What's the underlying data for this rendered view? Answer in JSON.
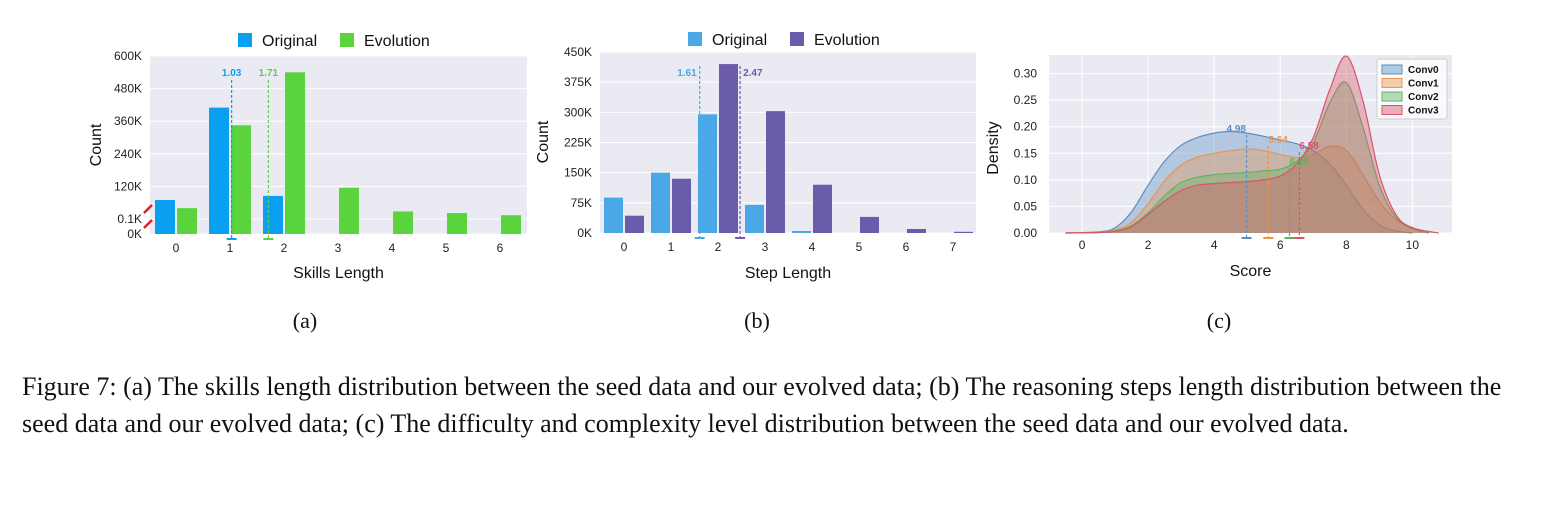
{
  "caption": "Figure 7: (a) The skills length distribution between the seed data and our evolved data; (b) The reasoning steps length distribution between the seed data and our evolved data; (c) The difficulty and complexity level distribution between the seed data and our evolved data.",
  "colors": {
    "original_a": "#0a9ff0",
    "evolution_a": "#5ad43c",
    "original_b": "#4aa8e6",
    "evolution_b": "#6b5bab",
    "plot_bg": "#eaeaf2",
    "break_mark": "#e02020",
    "conv0": "#5b8fc3",
    "conv1": "#ea9550",
    "conv2": "#5fb35f",
    "conv3": "#d9546a"
  },
  "chart_data": [
    {
      "id": "a",
      "type": "bar",
      "panel_label": "(a)",
      "xlabel": "Skills Length",
      "ylabel": "Count",
      "categories": [
        "0",
        "1",
        "2",
        "3",
        "4",
        "5",
        "6"
      ],
      "series": [
        {
          "name": "Original",
          "values": [
            70000,
            410000,
            85000,
            0,
            0,
            0,
            0
          ]
        },
        {
          "name": "Evolution",
          "values": [
            40000,
            345000,
            540000,
            115000,
            28000,
            22000,
            14000
          ]
        }
      ],
      "y_ticks": [
        "0K",
        "0.1K",
        "120K",
        "240K",
        "360K",
        "480K",
        "600K"
      ],
      "y_tick_values": [
        0,
        100,
        120000,
        240000,
        360000,
        480000,
        600000
      ],
      "ylim": [
        0,
        600000
      ],
      "broken_axis": true,
      "mean_lines": [
        {
          "series": "Original",
          "value": 1.03,
          "label": "1.03"
        },
        {
          "series": "Evolution",
          "value": 1.71,
          "label": "1.71"
        }
      ],
      "legend": "top-center",
      "grid": true
    },
    {
      "id": "b",
      "type": "bar",
      "panel_label": "(b)",
      "xlabel": "Step Length",
      "ylabel": "Count",
      "categories": [
        "0",
        "1",
        "2",
        "3",
        "4",
        "5",
        "6",
        "7"
      ],
      "series": [
        {
          "name": "Original",
          "values": [
            88000,
            150000,
            295000,
            70000,
            5000,
            0,
            0,
            0
          ]
        },
        {
          "name": "Evolution",
          "values": [
            43000,
            135000,
            420000,
            303000,
            120000,
            40000,
            10000,
            3000
          ]
        }
      ],
      "y_ticks": [
        "0K",
        "75K",
        "150K",
        "225K",
        "300K",
        "375K",
        "450K"
      ],
      "y_tick_values": [
        0,
        75000,
        150000,
        225000,
        300000,
        375000,
        450000
      ],
      "ylim": [
        0,
        450000
      ],
      "mean_lines": [
        {
          "series": "Original",
          "value": 1.61,
          "label": "1.61"
        },
        {
          "series": "Evolution",
          "value": 2.47,
          "label": "2.47"
        }
      ],
      "legend": "top-center",
      "grid": true
    },
    {
      "id": "c",
      "type": "area",
      "panel_label": "(c)",
      "xlabel": "Score",
      "ylabel": "Density",
      "x_ticks": [
        0,
        2,
        4,
        6,
        8,
        10
      ],
      "y_ticks": [
        "0.00",
        "0.05",
        "0.10",
        "0.15",
        "0.20",
        "0.25",
        "0.30"
      ],
      "xlim": [
        -1,
        11.2
      ],
      "ylim": [
        0,
        0.335
      ],
      "legend": "top-right",
      "grid": true,
      "series": [
        {
          "name": "Conv0",
          "mean": 4.98,
          "label": "4.98",
          "x": [
            -0.5,
            0.5,
            1.0,
            1.5,
            2.0,
            2.5,
            3.0,
            3.5,
            4.0,
            4.5,
            5.0,
            5.5,
            6.0,
            6.5,
            7.0,
            7.5,
            8.0,
            8.5,
            9.0,
            9.5,
            10.0
          ],
          "y": [
            0.0,
            0.002,
            0.01,
            0.04,
            0.09,
            0.135,
            0.165,
            0.18,
            0.188,
            0.191,
            0.188,
            0.182,
            0.175,
            0.168,
            0.155,
            0.13,
            0.09,
            0.045,
            0.015,
            0.004,
            0.0
          ]
        },
        {
          "name": "Conv1",
          "mean": 5.64,
          "label": "5.64",
          "x": [
            -0.5,
            0.5,
            1.0,
            1.5,
            2.0,
            2.5,
            3.0,
            3.5,
            4.0,
            4.5,
            5.0,
            5.5,
            6.0,
            6.5,
            7.0,
            7.5,
            8.0,
            8.5,
            9.0,
            9.5,
            10.0,
            10.5
          ],
          "y": [
            0.0,
            0.001,
            0.006,
            0.02,
            0.055,
            0.098,
            0.128,
            0.143,
            0.15,
            0.155,
            0.158,
            0.155,
            0.148,
            0.142,
            0.148,
            0.163,
            0.155,
            0.11,
            0.06,
            0.025,
            0.008,
            0.0
          ]
        },
        {
          "name": "Conv2",
          "mean": 6.28,
          "label": "6.28",
          "x": [
            -0.5,
            0.5,
            1.0,
            1.5,
            2.0,
            2.5,
            3.0,
            3.5,
            4.0,
            4.5,
            5.0,
            5.5,
            6.0,
            6.5,
            7.0,
            7.5,
            8.0,
            8.5,
            9.0,
            9.5,
            10.0,
            10.5
          ],
          "y": [
            0.0,
            0.001,
            0.004,
            0.014,
            0.038,
            0.07,
            0.095,
            0.105,
            0.11,
            0.112,
            0.114,
            0.117,
            0.12,
            0.135,
            0.17,
            0.245,
            0.283,
            0.2,
            0.09,
            0.03,
            0.008,
            0.0
          ]
        },
        {
          "name": "Conv3",
          "mean": 6.58,
          "label": "6.58",
          "x": [
            -0.5,
            0.5,
            1.0,
            1.5,
            2.0,
            2.5,
            3.0,
            3.5,
            4.0,
            4.5,
            5.0,
            5.5,
            6.0,
            6.5,
            7.0,
            7.5,
            8.0,
            8.5,
            9.0,
            9.5,
            10.0,
            10.8
          ],
          "y": [
            0.0,
            0.001,
            0.003,
            0.012,
            0.035,
            0.06,
            0.08,
            0.09,
            0.093,
            0.095,
            0.097,
            0.1,
            0.107,
            0.13,
            0.18,
            0.27,
            0.333,
            0.25,
            0.11,
            0.035,
            0.01,
            0.0
          ]
        }
      ]
    }
  ]
}
